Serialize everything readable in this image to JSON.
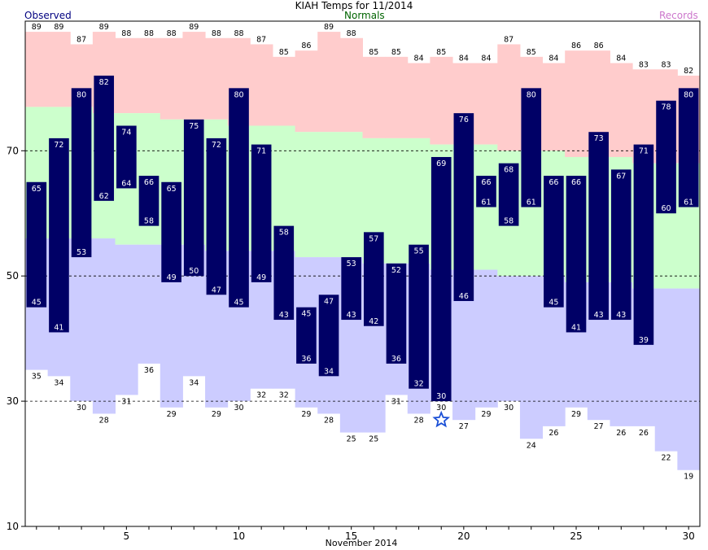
{
  "header": {
    "title": "KIAH Temps for 11/2014",
    "observed_label": "Observed",
    "normals_label": "Normals",
    "records_label": "Records"
  },
  "colors": {
    "observed_bar": "#000066",
    "record_band": "#ffcccc",
    "normal_band": "#ccffcc",
    "low_band": "#ccccff",
    "observed_text": "#000080",
    "normals_text": "#006400",
    "records_text": "#cc77cc",
    "star": "#1a4fd6"
  },
  "chart_data": {
    "type": "bar",
    "title": "KIAH Temps for 11/2014",
    "xlabel": "November 2014",
    "ylabel": "",
    "x": [
      1,
      2,
      3,
      4,
      5,
      6,
      7,
      8,
      9,
      10,
      11,
      12,
      13,
      14,
      15,
      16,
      17,
      18,
      19,
      20,
      21,
      22,
      23,
      24,
      25,
      26,
      27,
      28,
      29,
      30
    ],
    "xlim": [
      0.5,
      30.5
    ],
    "ylim": [
      10,
      91
    ],
    "yticks": [
      10,
      30,
      50,
      70
    ],
    "xticks": [
      5,
      10,
      15,
      20,
      25,
      30
    ],
    "grid": "dashed horizontal at 30, 50, 70",
    "series": [
      {
        "name": "Observed",
        "high": [
          65,
          72,
          80,
          82,
          74,
          66,
          65,
          75,
          72,
          80,
          71,
          58,
          45,
          47,
          53,
          57,
          52,
          55,
          69,
          76,
          66,
          68,
          80,
          66,
          66,
          73,
          67,
          71,
          78,
          80
        ],
        "low": [
          45,
          41,
          53,
          62,
          64,
          58,
          49,
          50,
          47,
          45,
          49,
          43,
          36,
          34,
          43,
          42,
          36,
          32,
          30,
          46,
          61,
          58,
          61,
          45,
          41,
          43,
          43,
          39,
          60,
          61
        ]
      },
      {
        "name": "Normals",
        "high": [
          77,
          77,
          77,
          76,
          76,
          76,
          75,
          75,
          75,
          74,
          74,
          74,
          73,
          73,
          73,
          72,
          72,
          72,
          71,
          71,
          71,
          70,
          70,
          70,
          69,
          69,
          69,
          68,
          68,
          68
        ],
        "low": [
          56,
          56,
          56,
          56,
          55,
          55,
          55,
          55,
          54,
          54,
          54,
          54,
          53,
          53,
          53,
          52,
          52,
          52,
          51,
          51,
          51,
          50,
          50,
          50,
          49,
          49,
          49,
          48,
          48,
          48
        ]
      },
      {
        "name": "Records",
        "high": [
          89,
          89,
          87,
          89,
          88,
          88,
          88,
          89,
          88,
          88,
          87,
          85,
          86,
          89,
          88,
          85,
          85,
          84,
          85,
          84,
          84,
          87,
          85,
          84,
          86,
          86,
          84,
          83,
          83,
          82
        ],
        "low": [
          35,
          34,
          30,
          28,
          31,
          36,
          29,
          34,
          29,
          30,
          32,
          32,
          29,
          28,
          25,
          25,
          31,
          28,
          30,
          27,
          29,
          30,
          24,
          26,
          29,
          27,
          26,
          26,
          22,
          19
        ]
      }
    ],
    "marker": {
      "type": "star",
      "x": 19,
      "y": 27
    }
  }
}
